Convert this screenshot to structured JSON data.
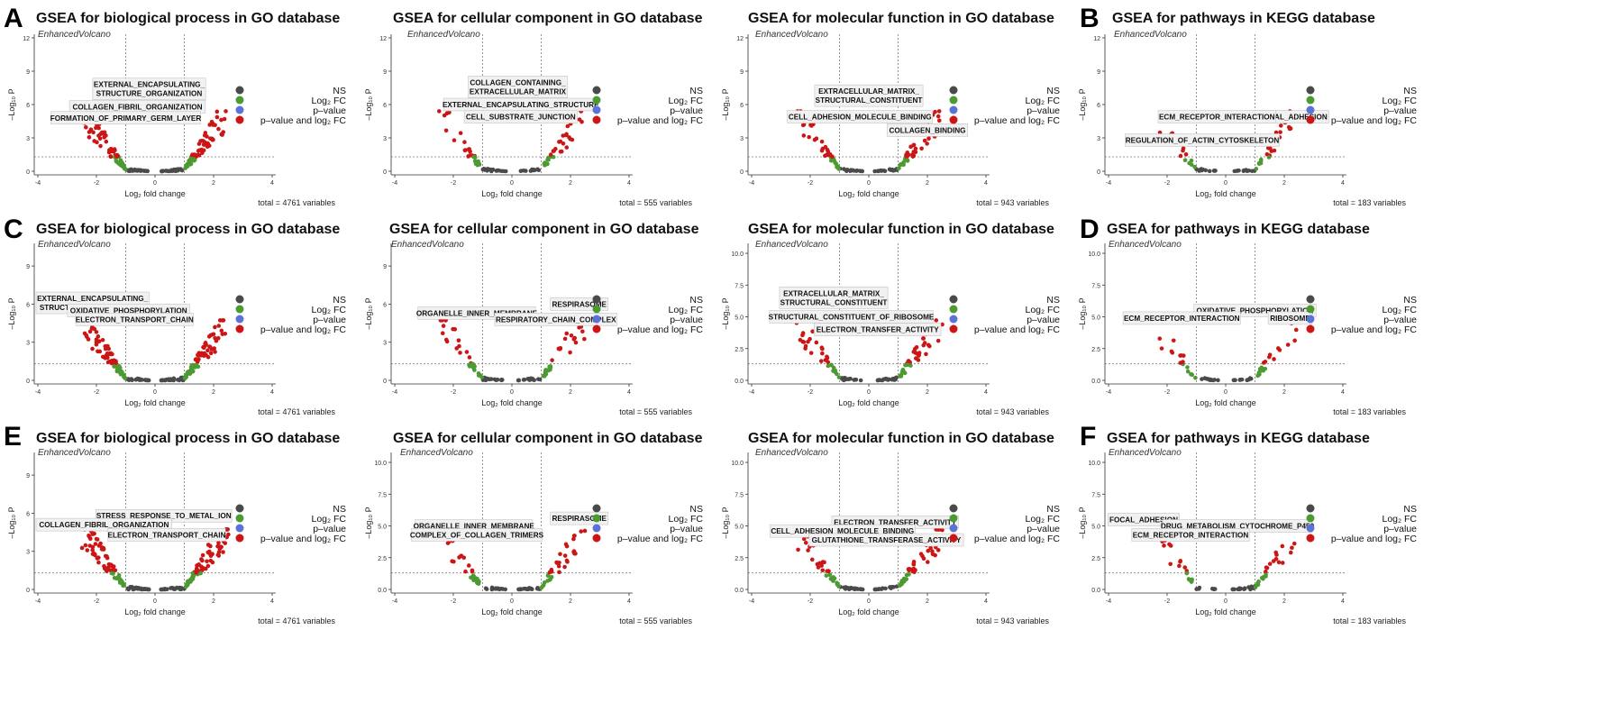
{
  "panel_letters": [
    "A",
    "B",
    "C",
    "D",
    "E",
    "F"
  ],
  "legend": {
    "ns": "NS",
    "log2fc": "Log₂ FC",
    "pvalue": "p–value",
    "both": "p–value and log₂ FC"
  },
  "colors": {
    "ns": "#4a4a4a",
    "log2fc": "#4d9a33",
    "pvalue": "#5b72d6",
    "both": "#cc1616"
  },
  "chart_data": [
    {
      "type": "scatter",
      "title": "GSEA for biological process in GO database",
      "subtitle": "EnhancedVolcano",
      "xlabel": "Log₂ fold change",
      "ylabel": "–Log₁₀ P",
      "caption": "total = 4761 variables",
      "xlim": [
        -4,
        4
      ],
      "ylim": [
        0,
        12
      ],
      "xticks": [
        -4,
        -2,
        0,
        2,
        4
      ],
      "yticks": [
        0,
        3,
        6,
        9,
        12
      ],
      "cut_fc": 1,
      "cut_p": 1.3,
      "labels": [
        {
          "text": [
            "EXTERNAL_ENCAPSULATING_",
            "STRUCTURE_ORGANIZATION"
          ],
          "x": -0.2,
          "y": 7.4
        },
        {
          "text": [
            "COLLAGEN_FIBRIL_ORGANIZATION"
          ],
          "x": -0.6,
          "y": 5.8
        },
        {
          "text": [
            "FORMATION_OF_PRIMARY_GERM_LAYER"
          ],
          "x": -1.0,
          "y": 4.8
        }
      ],
      "points_hint": "dense symmetric volcano, max -log10P about 6"
    },
    {
      "type": "scatter",
      "title": "GSEA for cellular component in GO database",
      "subtitle": "EnhancedVolcano",
      "xlabel": "Log₂ fold change",
      "ylabel": "–Log₁₀ P",
      "caption": "total = 555 variables",
      "xlim": [
        -4,
        4
      ],
      "ylim": [
        0,
        12
      ],
      "xticks": [
        -4,
        -2,
        0,
        2,
        4
      ],
      "yticks": [
        0,
        3,
        6,
        9,
        12
      ],
      "cut_fc": 1,
      "cut_p": 1.3,
      "labels": [
        {
          "text": [
            "COLLAGEN_CONTAINING_",
            "EXTRACELLULAR_MATRIX"
          ],
          "x": 0.2,
          "y": 7.6
        },
        {
          "text": [
            "EXTERNAL_ENCAPSULATING_STRUCTURE"
          ],
          "x": 0.3,
          "y": 6.0
        },
        {
          "text": [
            "CELL_SUBSTRATE_JUNCTION"
          ],
          "x": 0.3,
          "y": 4.9
        }
      ]
    },
    {
      "type": "scatter",
      "title": "GSEA for molecular function in GO database",
      "subtitle": "EnhancedVolcano",
      "xlabel": "Log₂ fold change",
      "ylabel": "–Log₁₀ P",
      "caption": "total = 943 variables",
      "xlim": [
        -4,
        4
      ],
      "ylim": [
        0,
        12
      ],
      "xticks": [
        -4,
        -2,
        0,
        2,
        4
      ],
      "yticks": [
        0,
        3,
        6,
        9,
        12
      ],
      "cut_fc": 1,
      "cut_p": 1.3,
      "labels": [
        {
          "text": [
            "EXTRACELLULAR_MATRIX_",
            "STRUCTURAL_CONSTITUENT"
          ],
          "x": 0.0,
          "y": 6.8
        },
        {
          "text": [
            "CELL_ADHESION_MOLECULE_BINDING"
          ],
          "x": -0.3,
          "y": 4.9
        },
        {
          "text": [
            "COLLAGEN_BINDING"
          ],
          "x": 2.0,
          "y": 3.7
        }
      ]
    },
    {
      "type": "scatter",
      "title": "GSEA for pathways in KEGG database",
      "subtitle": "EnhancedVolcano",
      "xlabel": "Log₂ fold change",
      "ylabel": "–Log₁₀ P",
      "caption": "total = 183 variables",
      "xlim": [
        -4,
        4
      ],
      "ylim": [
        0,
        12
      ],
      "xticks": [
        -4,
        -2,
        0,
        2,
        4
      ],
      "yticks": [
        0,
        3,
        6,
        9,
        12
      ],
      "cut_fc": 1,
      "cut_p": 1.3,
      "labels": [
        {
          "text": [
            "FOCAL_ADHESION"
          ],
          "x": 2.3,
          "y": 4.9
        },
        {
          "text": [
            "ECM_RECEPTOR_INTERACTION"
          ],
          "x": -0.3,
          "y": 4.9
        },
        {
          "text": [
            "REGULATION_OF_ACTIN_CYTOSKELETON"
          ],
          "x": -0.8,
          "y": 2.8
        }
      ]
    },
    {
      "type": "scatter",
      "title": "GSEA for biological process in GO database",
      "subtitle": "EnhancedVolcano",
      "xlabel": "Log₂ fold change",
      "ylabel": "–Log₁₀ P",
      "caption": "total = 4761 variables",
      "xlim": [
        -4,
        4
      ],
      "ylim": [
        0,
        10.5
      ],
      "xticks": [
        -4,
        -2,
        0,
        2,
        4
      ],
      "yticks": [
        0,
        3,
        6,
        9
      ],
      "cut_fc": 1,
      "cut_p": 1.3,
      "labels": [
        {
          "text": [
            "EXTERNAL_ENCAPSULATING_",
            "STRUCTURE_ORGANIZATION"
          ],
          "x": -2.4,
          "y": 6.1
        },
        {
          "text": [
            "OXIDATIVE_PHOSPHORYLATION"
          ],
          "x": -0.9,
          "y": 5.5
        },
        {
          "text": [
            "ELECTRON_TRANSPORT_CHAIN"
          ],
          "x": -0.7,
          "y": 4.8
        }
      ]
    },
    {
      "type": "scatter",
      "title": "GSEA for cellular component in GO database",
      "subtitle": "EnhancedVolcano",
      "xlabel": "Log₂ fold change",
      "ylabel": "–Log₁₀ P",
      "caption": "total = 555 variables",
      "xlim": [
        -4,
        4
      ],
      "ylim": [
        0,
        10.5
      ],
      "xticks": [
        -4,
        -2,
        0,
        2,
        4
      ],
      "yticks": [
        0,
        3,
        6,
        9
      ],
      "cut_fc": 1,
      "cut_p": 1.3,
      "labels": [
        {
          "text": [
            "RESPIRASOME"
          ],
          "x": 2.3,
          "y": 6.0
        },
        {
          "text": [
            "ORGANELLE_INNER_MEMBRANE"
          ],
          "x": -1.2,
          "y": 5.3
        },
        {
          "text": [
            "RESPIRATORY_CHAIN_COMPLEX"
          ],
          "x": 1.5,
          "y": 4.8
        }
      ]
    },
    {
      "type": "scatter",
      "title": "GSEA for molecular function in GO database",
      "subtitle": "EnhancedVolcano",
      "xlabel": "Log₂ fold change",
      "ylabel": "–Log₁₀ P",
      "caption": "total = 943 variables",
      "xlim": [
        -4,
        4
      ],
      "ylim": [
        0,
        10.5
      ],
      "xticks": [
        -4,
        -2,
        0,
        2,
        4
      ],
      "yticks": [
        0.0,
        2.5,
        5.0,
        7.5,
        10.0
      ],
      "cut_fc": 1,
      "cut_p": 1.3,
      "labels": [
        {
          "text": [
            "EXTRACELLULAR_MATRIX_",
            "STRUCTURAL_CONSTITUENT"
          ],
          "x": -1.2,
          "y": 6.5
        },
        {
          "text": [
            "STRUCTURAL_CONSTITUENT_OF_RIBOSOME"
          ],
          "x": -0.6,
          "y": 5.0
        },
        {
          "text": [
            "ELECTRON_TRANSFER_ACTIVITY"
          ],
          "x": 0.3,
          "y": 4.0
        }
      ]
    },
    {
      "type": "scatter",
      "title": "GSEA for pathways in KEGG database",
      "subtitle": "EnhancedVolcano",
      "xlabel": "Log₂ fold change",
      "ylabel": "–Log₁₀ P",
      "caption": "total = 183 variables",
      "xlim": [
        -4,
        4
      ],
      "ylim": [
        0,
        10.5
      ],
      "xticks": [
        -4,
        -2,
        0,
        2,
        4
      ],
      "yticks": [
        0.0,
        2.5,
        5.0,
        7.5,
        10.0
      ],
      "cut_fc": 1,
      "cut_p": 1.3,
      "labels": [
        {
          "text": [
            "OXIDATIVE_PHOSPHORYLATION"
          ],
          "x": 1.0,
          "y": 5.5
        },
        {
          "text": [
            "ECM_RECEPTOR_INTERACTION"
          ],
          "x": -1.5,
          "y": 4.9
        },
        {
          "text": [
            "RIBOSOME"
          ],
          "x": 2.2,
          "y": 4.9
        }
      ]
    },
    {
      "type": "scatter",
      "title": "GSEA for biological process in GO database",
      "subtitle": "EnhancedVolcano",
      "xlabel": "Log₂ fold change",
      "ylabel": "–Log₁₀ P",
      "caption": "total = 4761 variables",
      "xlim": [
        -4,
        4
      ],
      "ylim": [
        0,
        10.5
      ],
      "xticks": [
        -4,
        -2,
        0,
        2,
        4
      ],
      "yticks": [
        0,
        3,
        6,
        9
      ],
      "cut_fc": 1,
      "cut_p": 1.3,
      "labels": [
        {
          "text": [
            "STRESS_RESPONSE_TO_METAL_ION"
          ],
          "x": 0.3,
          "y": 5.8
        },
        {
          "text": [
            "COLLAGEN_FIBRIL_ORGANIZATION"
          ],
          "x": -2.0,
          "y": 5.1
        },
        {
          "text": [
            "ELECTRON_TRANSPORT_CHAIN"
          ],
          "x": 0.4,
          "y": 4.3
        }
      ]
    },
    {
      "type": "scatter",
      "title": "GSEA for cellular component in GO database",
      "subtitle": "EnhancedVolcano",
      "xlabel": "Log₂ fold change",
      "ylabel": "–Log₁₀ P",
      "caption": "total = 555 variables",
      "xlim": [
        -4,
        4
      ],
      "ylim": [
        0,
        10.5
      ],
      "xticks": [
        -4,
        -2,
        0,
        2,
        4
      ],
      "yticks": [
        0.0,
        2.5,
        5.0,
        7.5,
        10.0
      ],
      "cut_fc": 1,
      "cut_p": 1.3,
      "labels": [
        {
          "text": [
            "RESPIRASOME"
          ],
          "x": 2.3,
          "y": 5.6
        },
        {
          "text": [
            "ORGANELLE_INNER_MEMBRANE"
          ],
          "x": -1.3,
          "y": 5.0
        },
        {
          "text": [
            "COMPLEX_OF_COLLAGEN_TRIMERS"
          ],
          "x": -1.2,
          "y": 4.3
        }
      ]
    },
    {
      "type": "scatter",
      "title": "GSEA for molecular function in GO database",
      "subtitle": "EnhancedVolcano",
      "xlabel": "Log₂ fold change",
      "ylabel": "–Log₁₀ P",
      "caption": "total = 943 variables",
      "xlim": [
        -4,
        4
      ],
      "ylim": [
        0,
        10.5
      ],
      "xticks": [
        -4,
        -2,
        0,
        2,
        4
      ],
      "yticks": [
        0.0,
        2.5,
        5.0,
        7.5,
        10.0
      ],
      "cut_fc": 1,
      "cut_p": 1.3,
      "labels": [
        {
          "text": [
            "ELECTRON_TRANSFER_ACTIVITY"
          ],
          "x": 0.9,
          "y": 5.3
        },
        {
          "text": [
            "CELL_ADHESION_MOLECULE_BINDING"
          ],
          "x": -0.9,
          "y": 4.6
        },
        {
          "text": [
            "GLUTATHIONE_TRANSFERASE_ACTIVITY"
          ],
          "x": 0.6,
          "y": 3.9
        }
      ]
    },
    {
      "type": "scatter",
      "title": "GSEA for pathways in KEGG database",
      "subtitle": "EnhancedVolcano",
      "xlabel": "Log₂ fold change",
      "ylabel": "–Log₁₀ P",
      "caption": "total = 183 variables",
      "xlim": [
        -4,
        4
      ],
      "ylim": [
        0,
        10.5
      ],
      "xticks": [
        -4,
        -2,
        0,
        2,
        4
      ],
      "yticks": [
        0.0,
        2.5,
        5.0,
        7.5,
        10.0
      ],
      "cut_fc": 1,
      "cut_p": 1.3,
      "labels": [
        {
          "text": [
            "FOCAL_ADHESION"
          ],
          "x": -2.8,
          "y": 5.5
        },
        {
          "text": [
            "DRUG_METABOLISM_CYTOCHROME_P450"
          ],
          "x": 0.4,
          "y": 5.0
        },
        {
          "text": [
            "ECM_RECEPTOR_INTERACTION"
          ],
          "x": -1.2,
          "y": 4.3
        }
      ]
    }
  ]
}
